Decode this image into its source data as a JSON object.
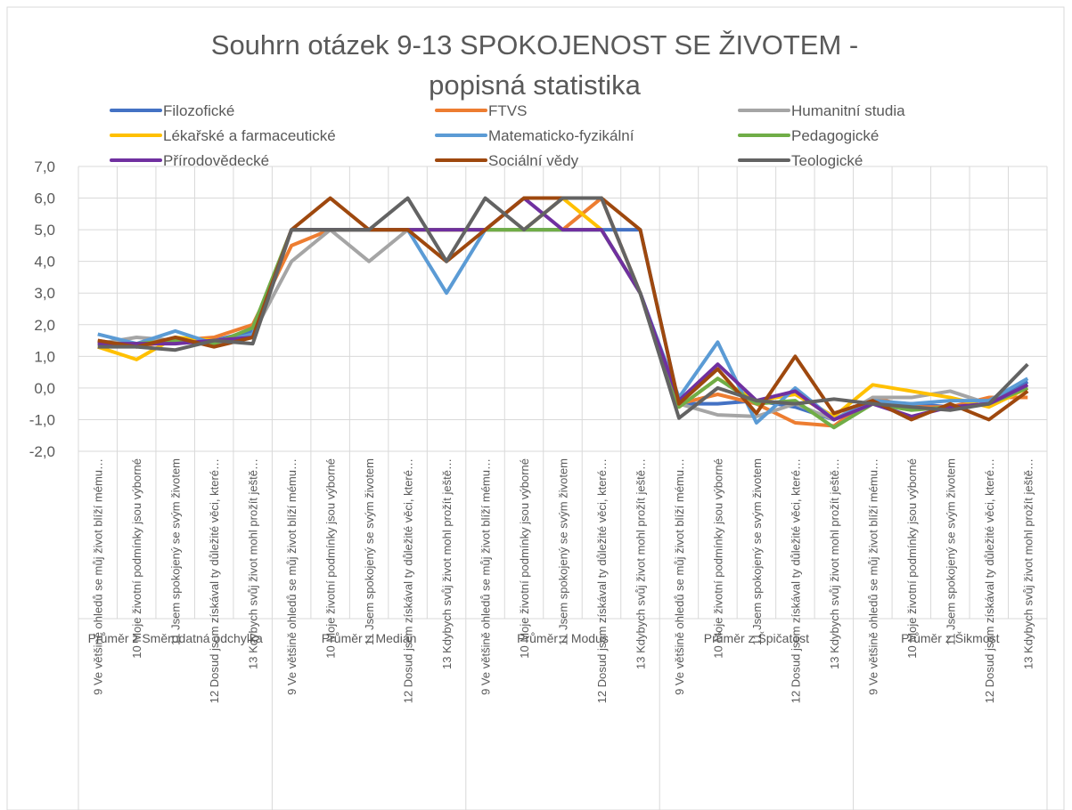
{
  "chart_data": {
    "type": "line",
    "title": "Souhrn otázek 9-13 SPOKOJENOST SE ŽIVOTEM - popisná statistika",
    "groups": [
      "Průměr z Směrodatná odchylka",
      "Průměr z Medián",
      "Průměr z Modus",
      "Průměr z Špičatost",
      "Průměr z Šikmost"
    ],
    "categories": [
      "9 Ve většině ohledů se můj život blíží mému…",
      "10 Moje životní podmínky jsou výborné",
      "11 Jsem spokojený se svým životem",
      "12 Dosud jsem získával ty důležité věci, které…",
      "13 Kdybych svůj život mohl prožít ještě…",
      "9 Ve většině ohledů se můj život blíží mému…",
      "10 Moje životní podmínky jsou výborné",
      "11 Jsem spokojený se svým životem",
      "12 Dosud jsem získával ty důležité věci, které…",
      "13 Kdybych svůj život mohl prožít ještě…",
      "9 Ve většině ohledů se můj život blíží mému…",
      "10 Moje životní podmínky jsou výborné",
      "11 Jsem spokojený se svým životem",
      "12 Dosud jsem získával ty důležité věci, které…",
      "13 Kdybych svůj život mohl prožít ještě…",
      "9 Ve většině ohledů se můj život blíží mému…",
      "10 Moje životní podmínky jsou výborné",
      "11 Jsem spokojený se svým životem",
      "12 Dosud jsem získával ty důležité věci, které…",
      "13 Kdybych svůj život mohl prožít ještě…",
      "9 Ve většině ohledů se můj život blíží mému…",
      "10 Moje životní podmínky jsou výborné",
      "11 Jsem spokojený se svým životem",
      "12 Dosud jsem získával ty důležité věci, které…",
      "13 Kdybych svůj život mohl prožít ještě…"
    ],
    "series": [
      {
        "name": "Filozofické",
        "color": "#4472c4",
        "values": [
          1.4,
          1.4,
          1.5,
          1.5,
          1.8,
          5,
          5,
          5,
          5,
          5,
          5,
          5,
          5,
          5,
          5,
          -0.5,
          -0.5,
          -0.4,
          -0.6,
          -1.0,
          -0.5,
          -0.5,
          -0.6,
          -0.5,
          0.2
        ]
      },
      {
        "name": "FTVS",
        "color": "#ed7d31",
        "values": [
          1.5,
          1.3,
          1.5,
          1.6,
          2.0,
          4.5,
          5,
          5,
          5,
          5,
          5,
          5,
          5,
          6,
          3,
          -0.5,
          -0.2,
          -0.5,
          -1.1,
          -1.2,
          -0.3,
          -0.6,
          -0.6,
          -0.3,
          -0.3
        ]
      },
      {
        "name": "Humanitní studia",
        "color": "#a5a5a5",
        "values": [
          1.4,
          1.6,
          1.5,
          1.4,
          1.7,
          4,
          5,
          4,
          5,
          5,
          5,
          5,
          5,
          5,
          3,
          -0.5,
          -0.85,
          -0.9,
          -0.5,
          -1.0,
          -0.3,
          -0.3,
          -0.1,
          -0.5,
          0.1
        ]
      },
      {
        "name": "Lékařské a farmaceutické",
        "color": "#ffc000",
        "values": [
          1.3,
          0.9,
          1.6,
          1.5,
          1.6,
          5,
          5,
          5,
          5,
          5,
          5,
          5,
          6,
          5,
          3,
          -0.6,
          0.3,
          -0.4,
          -0.2,
          -0.9,
          0.1,
          -0.1,
          -0.3,
          -0.6,
          0.0
        ]
      },
      {
        "name": "Matematicko-fyzikální",
        "color": "#5b9bd5",
        "values": [
          1.7,
          1.4,
          1.8,
          1.4,
          1.7,
          5,
          5,
          5,
          5,
          3,
          5,
          5,
          5,
          5,
          3,
          -0.3,
          1.45,
          -1.1,
          0.0,
          -1.0,
          -0.4,
          -0.5,
          -0.4,
          -0.4,
          0.3
        ]
      },
      {
        "name": "Pedagogické",
        "color": "#70ad47",
        "values": [
          1.4,
          1.4,
          1.5,
          1.4,
          1.9,
          5,
          5,
          5,
          5,
          5,
          5,
          5,
          5,
          5,
          3,
          -0.6,
          0.3,
          -0.5,
          -0.4,
          -1.25,
          -0.5,
          -0.7,
          -0.6,
          -0.5,
          0.0
        ]
      },
      {
        "name": "Přírodovědecké",
        "color": "#7030a0",
        "values": [
          1.4,
          1.4,
          1.4,
          1.5,
          1.6,
          5,
          5,
          5,
          5,
          5,
          5,
          6,
          5,
          5,
          3,
          -0.4,
          0.75,
          -0.4,
          -0.1,
          -1.0,
          -0.5,
          -0.9,
          -0.6,
          -0.5,
          0.1
        ]
      },
      {
        "name": "Sociální vědy",
        "color": "#9e480e",
        "values": [
          1.5,
          1.3,
          1.6,
          1.3,
          1.6,
          5,
          6,
          5,
          5,
          4,
          5,
          6,
          6,
          6,
          5,
          -0.5,
          0.6,
          -0.8,
          1.0,
          -0.8,
          -0.4,
          -1.0,
          -0.5,
          -1.0,
          -0.1
        ]
      },
      {
        "name": "Teologické",
        "color": "#636363",
        "values": [
          1.3,
          1.3,
          1.2,
          1.5,
          1.4,
          5,
          5,
          5,
          6,
          4,
          6,
          5,
          6,
          6,
          3,
          -0.95,
          0.0,
          -0.4,
          -0.5,
          -0.35,
          -0.5,
          -0.6,
          -0.7,
          -0.5,
          0.75
        ]
      }
    ],
    "ylim": [
      -2,
      7
    ],
    "yticks": [
      {
        "value": -2,
        "label": "-2,0"
      },
      {
        "value": -1,
        "label": "-1,0"
      },
      {
        "value": 0,
        "label": "0,0"
      },
      {
        "value": 1,
        "label": "1,0"
      },
      {
        "value": 2,
        "label": "2,0"
      },
      {
        "value": 3,
        "label": "3,0"
      },
      {
        "value": 4,
        "label": "4,0"
      },
      {
        "value": 5,
        "label": "5,0"
      },
      {
        "value": 6,
        "label": "6,0"
      },
      {
        "value": 7,
        "label": "7,0"
      }
    ],
    "grid": true,
    "legend": "top"
  }
}
